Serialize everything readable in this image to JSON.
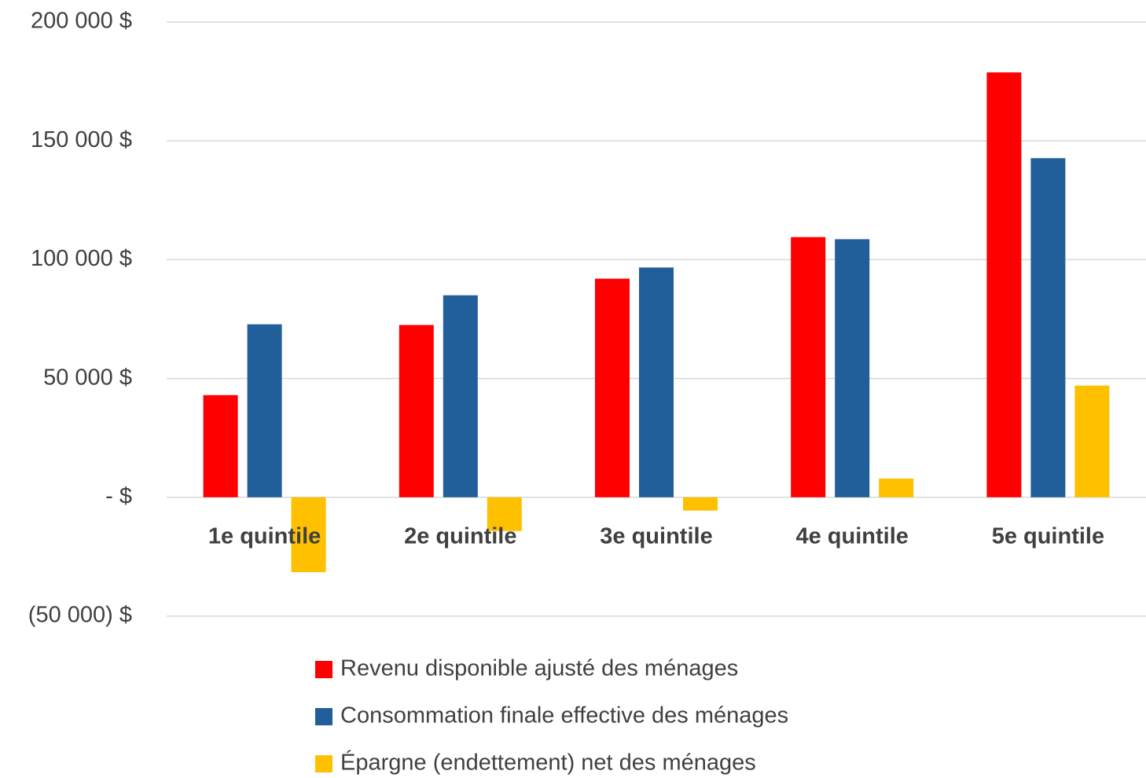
{
  "chart_data": {
    "type": "bar",
    "categories": [
      "1e quintile",
      "2e quintile",
      "3e quintile",
      "4e quintile",
      "5e quintile"
    ],
    "series": [
      {
        "name": "Revenu disponible ajusté des ménages",
        "color": "#ff0000",
        "values": [
          43000,
          72500,
          92000,
          109500,
          178800
        ]
      },
      {
        "name": "Consommation finale effective des ménages",
        "color": "#215f9a",
        "values": [
          72800,
          85000,
          96700,
          108600,
          142700
        ]
      },
      {
        "name": "Épargne (endettement) net des ménages",
        "color": "#ffc000",
        "values": [
          -31500,
          -14200,
          -5600,
          7900,
          47000
        ]
      }
    ],
    "ylim": [
      -50000,
      200000
    ],
    "yticks": [
      {
        "value": -50000,
        "label": "(50 000) $"
      },
      {
        "value": 0,
        "label": "-   $"
      },
      {
        "value": 50000,
        "label": "50 000  $"
      },
      {
        "value": 100000,
        "label": "100 000  $"
      },
      {
        "value": 150000,
        "label": "150 000  $"
      },
      {
        "value": 200000,
        "label": "200 000  $"
      }
    ],
    "grid": true,
    "legend": "bottom"
  }
}
